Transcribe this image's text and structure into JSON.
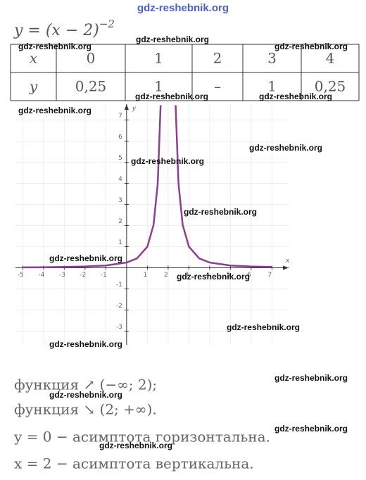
{
  "site_mark": "gdz-reshebnik.org",
  "header": {
    "formula": "y = (x − 2)",
    "exponent": "−2"
  },
  "table": {
    "rows": [
      [
        "x",
        "0",
        "1",
        "2",
        "3",
        "4"
      ],
      [
        "y",
        "0,25",
        "1",
        "–",
        "1",
        "0,25"
      ]
    ]
  },
  "graph": {
    "type": "line",
    "xlabel": "x",
    "ylabel": "y",
    "xlim": [
      -5.35,
      7.8
    ],
    "ylim": [
      -3.65,
      7.75
    ],
    "xticks": [
      -5,
      -4,
      -3,
      -2,
      -1,
      1,
      2,
      3,
      4,
      5,
      6,
      7
    ],
    "yticks": [
      -3,
      -2,
      -1,
      1,
      2,
      3,
      4,
      5,
      6,
      7
    ],
    "grid": true,
    "color": "#8e3e94",
    "x": [
      -5,
      -4,
      -3,
      -2,
      -1,
      0,
      0.5,
      1,
      1.3,
      1.5,
      1.64,
      2,
      2.36,
      2.5,
      2.7,
      3,
      3.5,
      4,
      5,
      6,
      7
    ],
    "y": [
      0.02,
      0.028,
      0.04,
      0.0625,
      0.111,
      0.25,
      0.444,
      1,
      2.04,
      4,
      7.7,
      null,
      7.7,
      4,
      2.04,
      1,
      0.444,
      0.25,
      0.111,
      0.0625,
      0.04
    ]
  },
  "lines": [
    "функция ↗ (−∞; 2);",
    "функция ↘ (2; +∞).",
    "y = 0 − асимптота горизонтальна.",
    "x = 2 − асимптота вертикальна."
  ],
  "watermarks": [
    "gdz-reshebnik.org",
    "gdz-reshebnik.org",
    "gdz-reshebnik.org",
    "gdz-reshebnik.org",
    "gdz-reshebnik.org",
    "gdz-reshebnik.org",
    "gdz-reshebnik.org",
    "gdz-reshebnik.org",
    "gdz-reshebnik.org",
    "gdz-reshebnik.org",
    "gdz-reshebnik.org",
    "gdz-reshebnik.org",
    "gdz-reshebnik.org",
    "gdz-reshebnik.org",
    "gdz-reshebnik.org",
    "gdz-reshebnik.org",
    "gdz-reshebnik.org"
  ]
}
